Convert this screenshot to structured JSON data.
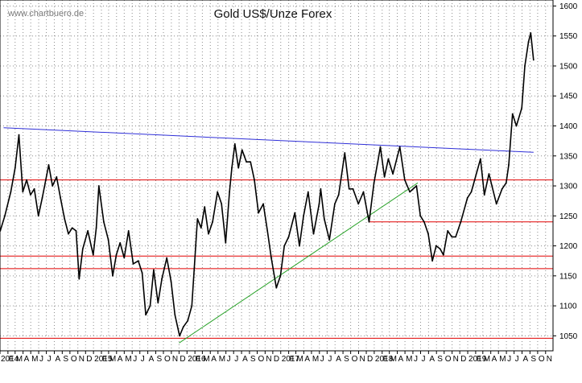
{
  "chart_data": {
    "type": "line",
    "title": "Gold US$/Unze Forex",
    "watermark": "www.chartbuero.de",
    "xlim": [
      "2014-01-01",
      "2019-11-30"
    ],
    "ylim": [
      1025,
      1610
    ],
    "y_ticks": [
      1050,
      1100,
      1150,
      1200,
      1250,
      1300,
      1350,
      1400,
      1450,
      1500,
      1550,
      1600
    ],
    "x_tick_labels": [
      {
        "date": "2014-01-01",
        "label": "2014"
      },
      {
        "date": "2014-02-01",
        "label": "F"
      },
      {
        "date": "2014-03-01",
        "label": "M"
      },
      {
        "date": "2014-04-01",
        "label": "A"
      },
      {
        "date": "2014-05-01",
        "label": "M"
      },
      {
        "date": "2014-06-01",
        "label": "J"
      },
      {
        "date": "2014-07-01",
        "label": "J"
      },
      {
        "date": "2014-08-01",
        "label": "A"
      },
      {
        "date": "2014-09-01",
        "label": "S"
      },
      {
        "date": "2014-10-01",
        "label": "O"
      },
      {
        "date": "2014-11-01",
        "label": "N"
      },
      {
        "date": "2014-12-01",
        "label": "D"
      },
      {
        "date": "2015-01-01",
        "label": "2015"
      },
      {
        "date": "2015-02-01",
        "label": "F"
      },
      {
        "date": "2015-03-01",
        "label": "M"
      },
      {
        "date": "2015-04-01",
        "label": "A"
      },
      {
        "date": "2015-05-01",
        "label": "M"
      },
      {
        "date": "2015-06-01",
        "label": "J"
      },
      {
        "date": "2015-07-01",
        "label": "J"
      },
      {
        "date": "2015-08-01",
        "label": "A"
      },
      {
        "date": "2015-09-01",
        "label": "S"
      },
      {
        "date": "2015-10-01",
        "label": "O"
      },
      {
        "date": "2015-11-01",
        "label": "N"
      },
      {
        "date": "2015-12-01",
        "label": "D"
      },
      {
        "date": "2016-01-01",
        "label": "2016"
      },
      {
        "date": "2016-02-01",
        "label": "F"
      },
      {
        "date": "2016-03-01",
        "label": "M"
      },
      {
        "date": "2016-04-01",
        "label": "A"
      },
      {
        "date": "2016-05-01",
        "label": "M"
      },
      {
        "date": "2016-06-01",
        "label": "J"
      },
      {
        "date": "2016-07-01",
        "label": "J"
      },
      {
        "date": "2016-08-01",
        "label": "A"
      },
      {
        "date": "2016-09-01",
        "label": "S"
      },
      {
        "date": "2016-10-01",
        "label": "O"
      },
      {
        "date": "2016-11-01",
        "label": "N"
      },
      {
        "date": "2016-12-01",
        "label": "D"
      },
      {
        "date": "2017-01-01",
        "label": "2017"
      },
      {
        "date": "2017-02-01",
        "label": "F"
      },
      {
        "date": "2017-03-01",
        "label": "M"
      },
      {
        "date": "2017-04-01",
        "label": "A"
      },
      {
        "date": "2017-05-01",
        "label": "M"
      },
      {
        "date": "2017-06-01",
        "label": "J"
      },
      {
        "date": "2017-07-01",
        "label": "J"
      },
      {
        "date": "2017-08-01",
        "label": "A"
      },
      {
        "date": "2017-09-01",
        "label": "S"
      },
      {
        "date": "2017-10-01",
        "label": "O"
      },
      {
        "date": "2017-11-01",
        "label": "N"
      },
      {
        "date": "2017-12-01",
        "label": "D"
      },
      {
        "date": "2018-01-01",
        "label": "2018"
      },
      {
        "date": "2018-02-01",
        "label": "F"
      },
      {
        "date": "2018-03-01",
        "label": "M"
      },
      {
        "date": "2018-04-01",
        "label": "A"
      },
      {
        "date": "2018-05-01",
        "label": "M"
      },
      {
        "date": "2018-06-01",
        "label": "J"
      },
      {
        "date": "2018-07-01",
        "label": "J"
      },
      {
        "date": "2018-08-01",
        "label": "A"
      },
      {
        "date": "2018-09-01",
        "label": "S"
      },
      {
        "date": "2018-10-01",
        "label": "O"
      },
      {
        "date": "2018-11-01",
        "label": "N"
      },
      {
        "date": "2018-12-01",
        "label": "D"
      },
      {
        "date": "2019-01-01",
        "label": "2019"
      },
      {
        "date": "2019-02-01",
        "label": "F"
      },
      {
        "date": "2019-03-01",
        "label": "M"
      },
      {
        "date": "2019-04-01",
        "label": "A"
      },
      {
        "date": "2019-05-01",
        "label": "M"
      },
      {
        "date": "2019-06-01",
        "label": "J"
      },
      {
        "date": "2019-07-01",
        "label": "J"
      },
      {
        "date": "2019-08-01",
        "label": "A"
      },
      {
        "date": "2019-09-01",
        "label": "S"
      },
      {
        "date": "2019-10-01",
        "label": "O"
      },
      {
        "date": "2019-11-01",
        "label": "N"
      }
    ],
    "series": [
      {
        "color": "#000000",
        "points": [
          [
            "2014-01-02",
            1225
          ],
          [
            "2014-01-20",
            1250
          ],
          [
            "2014-02-12",
            1290
          ],
          [
            "2014-03-01",
            1330
          ],
          [
            "2014-03-16",
            1385
          ],
          [
            "2014-03-31",
            1290
          ],
          [
            "2014-04-15",
            1310
          ],
          [
            "2014-04-30",
            1285
          ],
          [
            "2014-05-15",
            1295
          ],
          [
            "2014-05-31",
            1250
          ],
          [
            "2014-06-15",
            1280
          ],
          [
            "2014-07-10",
            1335
          ],
          [
            "2014-07-25",
            1300
          ],
          [
            "2014-08-10",
            1315
          ],
          [
            "2014-08-25",
            1280
          ],
          [
            "2014-09-10",
            1245
          ],
          [
            "2014-09-25",
            1220
          ],
          [
            "2014-10-10",
            1230
          ],
          [
            "2014-10-25",
            1225
          ],
          [
            "2014-11-06",
            1145
          ],
          [
            "2014-11-20",
            1195
          ],
          [
            "2014-12-10",
            1225
          ],
          [
            "2014-12-31",
            1185
          ],
          [
            "2015-01-12",
            1230
          ],
          [
            "2015-01-22",
            1300
          ],
          [
            "2015-02-10",
            1240
          ],
          [
            "2015-02-28",
            1210
          ],
          [
            "2015-03-17",
            1150
          ],
          [
            "2015-03-31",
            1185
          ],
          [
            "2015-04-15",
            1205
          ],
          [
            "2015-05-01",
            1180
          ],
          [
            "2015-05-18",
            1225
          ],
          [
            "2015-06-05",
            1170
          ],
          [
            "2015-06-25",
            1175
          ],
          [
            "2015-07-10",
            1155
          ],
          [
            "2015-07-24",
            1085
          ],
          [
            "2015-08-10",
            1100
          ],
          [
            "2015-08-24",
            1160
          ],
          [
            "2015-09-10",
            1105
          ],
          [
            "2015-09-25",
            1145
          ],
          [
            "2015-10-14",
            1180
          ],
          [
            "2015-10-31",
            1140
          ],
          [
            "2015-11-15",
            1085
          ],
          [
            "2015-12-03",
            1050
          ],
          [
            "2015-12-18",
            1065
          ],
          [
            "2016-01-04",
            1075
          ],
          [
            "2016-01-20",
            1100
          ],
          [
            "2016-02-11",
            1245
          ],
          [
            "2016-02-25",
            1230
          ],
          [
            "2016-03-10",
            1265
          ],
          [
            "2016-03-25",
            1220
          ],
          [
            "2016-04-10",
            1240
          ],
          [
            "2016-04-29",
            1290
          ],
          [
            "2016-05-15",
            1270
          ],
          [
            "2016-05-31",
            1205
          ],
          [
            "2016-06-15",
            1290
          ],
          [
            "2016-06-24",
            1330
          ],
          [
            "2016-07-06",
            1370
          ],
          [
            "2016-07-20",
            1330
          ],
          [
            "2016-08-03",
            1360
          ],
          [
            "2016-08-20",
            1340
          ],
          [
            "2016-09-05",
            1340
          ],
          [
            "2016-09-20",
            1310
          ],
          [
            "2016-10-06",
            1255
          ],
          [
            "2016-10-25",
            1270
          ],
          [
            "2016-11-10",
            1225
          ],
          [
            "2016-11-25",
            1180
          ],
          [
            "2016-12-15",
            1130
          ],
          [
            "2016-12-31",
            1150
          ],
          [
            "2017-01-15",
            1200
          ],
          [
            "2017-02-01",
            1215
          ],
          [
            "2017-02-25",
            1255
          ],
          [
            "2017-03-15",
            1200
          ],
          [
            "2017-03-31",
            1250
          ],
          [
            "2017-04-18",
            1290
          ],
          [
            "2017-05-09",
            1220
          ],
          [
            "2017-05-31",
            1270
          ],
          [
            "2017-06-06",
            1295
          ],
          [
            "2017-06-20",
            1245
          ],
          [
            "2017-07-10",
            1210
          ],
          [
            "2017-07-31",
            1270
          ],
          [
            "2017-08-15",
            1285
          ],
          [
            "2017-09-08",
            1355
          ],
          [
            "2017-09-25",
            1295
          ],
          [
            "2017-10-10",
            1295
          ],
          [
            "2017-10-31",
            1270
          ],
          [
            "2017-11-20",
            1290
          ],
          [
            "2017-12-12",
            1240
          ],
          [
            "2017-12-31",
            1305
          ],
          [
            "2018-01-15",
            1340
          ],
          [
            "2018-01-25",
            1365
          ],
          [
            "2018-02-10",
            1315
          ],
          [
            "2018-02-25",
            1345
          ],
          [
            "2018-03-15",
            1320
          ],
          [
            "2018-04-11",
            1365
          ],
          [
            "2018-04-30",
            1310
          ],
          [
            "2018-05-20",
            1290
          ],
          [
            "2018-06-15",
            1300
          ],
          [
            "2018-06-30",
            1250
          ],
          [
            "2018-07-15",
            1240
          ],
          [
            "2018-07-31",
            1220
          ],
          [
            "2018-08-16",
            1175
          ],
          [
            "2018-08-31",
            1200
          ],
          [
            "2018-09-15",
            1195
          ],
          [
            "2018-09-28",
            1185
          ],
          [
            "2018-10-15",
            1225
          ],
          [
            "2018-10-31",
            1215
          ],
          [
            "2018-11-15",
            1215
          ],
          [
            "2018-12-05",
            1240
          ],
          [
            "2018-12-31",
            1280
          ],
          [
            "2019-01-15",
            1290
          ],
          [
            "2019-02-20",
            1345
          ],
          [
            "2019-03-07",
            1285
          ],
          [
            "2019-03-25",
            1320
          ],
          [
            "2019-04-23",
            1270
          ],
          [
            "2019-05-15",
            1295
          ],
          [
            "2019-05-31",
            1305
          ],
          [
            "2019-06-10",
            1335
          ],
          [
            "2019-06-25",
            1420
          ],
          [
            "2019-07-10",
            1400
          ],
          [
            "2019-07-31",
            1430
          ],
          [
            "2019-08-12",
            1500
          ],
          [
            "2019-08-26",
            1540
          ],
          [
            "2019-09-04",
            1555
          ],
          [
            "2019-09-15",
            1510
          ]
        ]
      }
    ],
    "horizontal_lines": [
      {
        "y": 1310,
        "color": "#e00000",
        "from": "2014-01-01",
        "to": "2019-11-30"
      },
      {
        "y": 1240,
        "color": "#e00000",
        "from": "2017-12-15",
        "to": "2019-11-30"
      },
      {
        "y": 1183,
        "color": "#e00000",
        "from": "2014-01-01",
        "to": "2019-11-30"
      },
      {
        "y": 1162,
        "color": "#e00000",
        "from": "2014-01-01",
        "to": "2019-11-30"
      },
      {
        "y": 1046,
        "color": "#e00000",
        "from": "2014-01-01",
        "to": "2019-11-30"
      }
    ],
    "trend_lines": [
      {
        "color": "#2f2fd8",
        "from": [
          "2014-01-15",
          1397
        ],
        "to": [
          "2019-09-15",
          1356
        ]
      },
      {
        "color": "#2aa32a",
        "from": [
          "2015-12-01",
          1038
        ],
        "to": [
          "2018-06-20",
          1305
        ]
      }
    ],
    "grid": true
  }
}
